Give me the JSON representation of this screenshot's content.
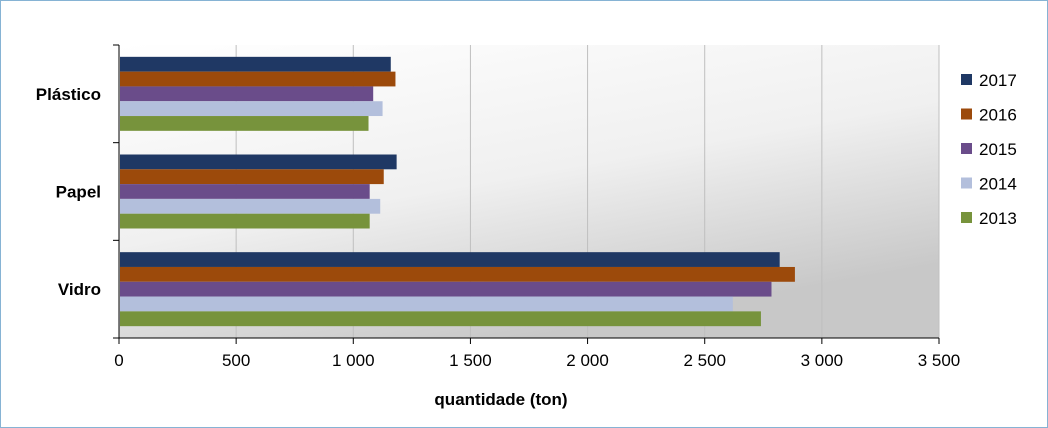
{
  "chart_data": {
    "type": "bar",
    "orientation": "horizontal",
    "title": "",
    "xlabel": "quantidade (ton)",
    "ylabel": "",
    "categories": [
      "Plástico",
      "Papel",
      "Vidro"
    ],
    "xlim": [
      0,
      3500
    ],
    "xticks": [
      0,
      500,
      1000,
      1500,
      2000,
      2500,
      3000,
      3500
    ],
    "xtick_labels": [
      "0",
      "500",
      "1 000",
      "1 500",
      "2 000",
      "2 500",
      "3 000",
      "3 500"
    ],
    "grid": "vertical",
    "legend_position": "right",
    "series": [
      {
        "name": "2017",
        "color": "#1f3864",
        "values": [
          1160,
          1185,
          2820
        ]
      },
      {
        "name": "2016",
        "color": "#9c4a0b",
        "values": [
          1180,
          1130,
          2885
        ]
      },
      {
        "name": "2015",
        "color": "#6a4c8a",
        "values": [
          1085,
          1070,
          2785
        ]
      },
      {
        "name": "2014",
        "color": "#b3bfdc",
        "values": [
          1125,
          1115,
          2620
        ]
      },
      {
        "name": "2013",
        "color": "#77933c",
        "values": [
          1065,
          1070,
          2740
        ]
      }
    ]
  }
}
